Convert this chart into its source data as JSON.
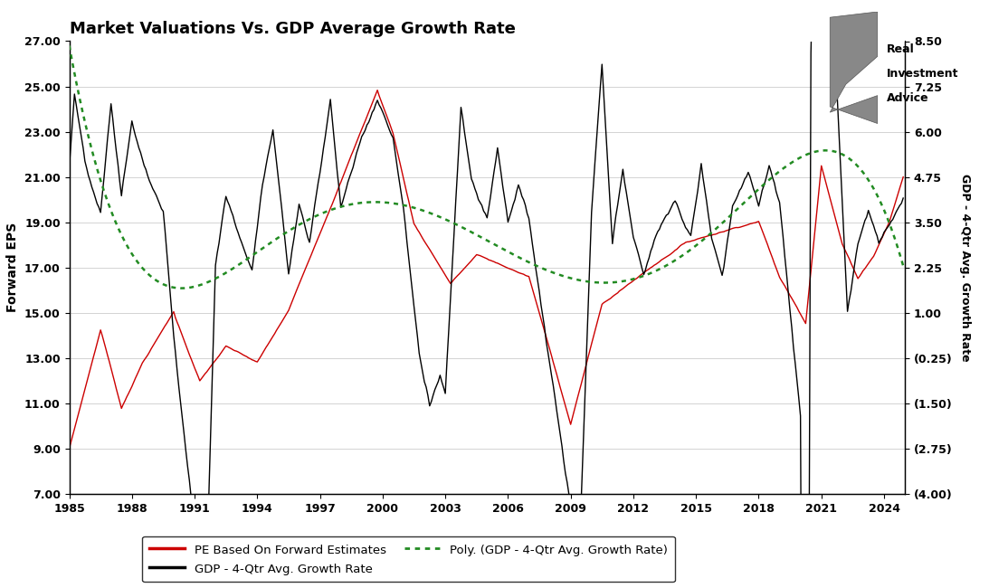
{
  "title": "Market Valuations Vs. GDP Average Growth Rate",
  "xlabel_values": [
    1985,
    1988,
    1991,
    1994,
    1997,
    2000,
    2003,
    2006,
    2009,
    2012,
    2015,
    2018,
    2021,
    2024
  ],
  "ylabel_left": "Forward EPS",
  "ylabel_right": "GDP - 4-Qtr Avg. Growth Rate",
  "ylim_left": [
    7.0,
    27.0
  ],
  "ylim_right": [
    -4.0,
    8.5
  ],
  "yticks_left": [
    7.0,
    9.0,
    11.0,
    13.0,
    15.0,
    17.0,
    19.0,
    21.0,
    23.0,
    25.0,
    27.0
  ],
  "yticks_right": [
    -4.0,
    -2.75,
    -1.5,
    -0.25,
    1.0,
    2.25,
    3.5,
    4.75,
    6.0,
    7.25,
    8.5
  ],
  "ytick_right_labels": [
    "(4.00)",
    "(2.75)",
    "(1.50)",
    "(0.25)",
    "1.00",
    "2.25",
    "3.50",
    "4.75",
    "6.00",
    "7.25",
    "8.50"
  ],
  "background_color": "#ffffff",
  "pe_color": "#cc0000",
  "gdp_color": "#000000",
  "poly_color": "#228B22",
  "logo_text": "Real\nInvestment\nAdvice",
  "xlim": [
    1985,
    2025
  ]
}
